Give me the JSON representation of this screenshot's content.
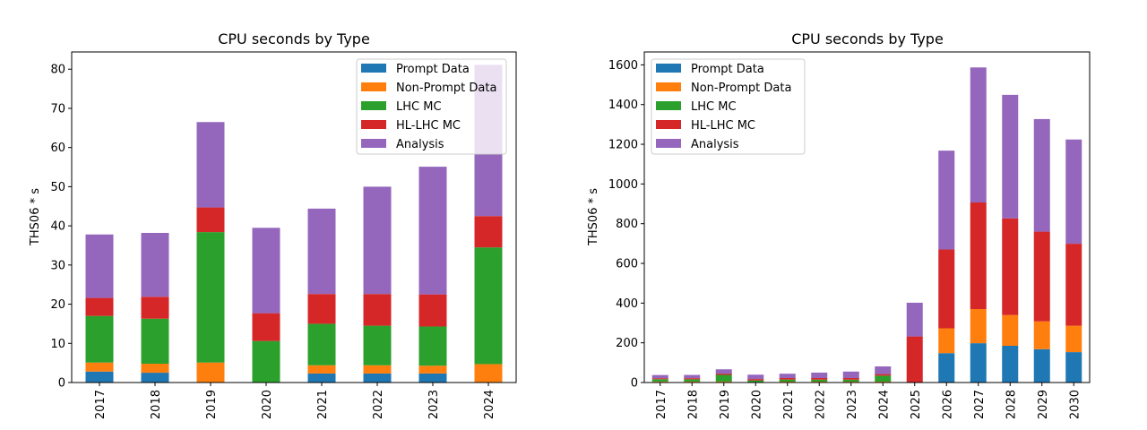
{
  "colors": {
    "Prompt Data": "#1f77b4",
    "Non-Prompt Data": "#ff7f0e",
    "LHC MC": "#2ca02c",
    "HL-LHC MC": "#d62728",
    "Analysis": "#9467bd"
  },
  "chart_data": [
    {
      "type": "bar",
      "stacked": true,
      "title": "CPU seconds by Type",
      "xlabel": "",
      "ylabel": "THS06 * s",
      "ylim": [
        0,
        85
      ],
      "yticks": [
        0,
        10,
        20,
        30,
        40,
        50,
        60,
        70,
        80
      ],
      "legend_position": "top-right",
      "categories": [
        "2017",
        "2018",
        "2019",
        "2020",
        "2021",
        "2022",
        "2023",
        "2024"
      ],
      "series": [
        {
          "name": "Prompt Data",
          "values": [
            2.8,
            2.5,
            0,
            0,
            2.3,
            2.3,
            2.3,
            0
          ]
        },
        {
          "name": "Non-Prompt Data",
          "values": [
            2.3,
            2.3,
            5.1,
            0,
            2.1,
            2.1,
            2.0,
            4.7
          ]
        },
        {
          "name": "LHC MC",
          "values": [
            11.9,
            11.5,
            33.3,
            10.6,
            10.6,
            10.1,
            10.0,
            29.8
          ]
        },
        {
          "name": "HL-LHC MC",
          "values": [
            4.6,
            5.6,
            6.3,
            7.1,
            7.6,
            8.1,
            8.2,
            8.0
          ]
        },
        {
          "name": "Analysis",
          "values": [
            16.2,
            16.3,
            21.8,
            21.8,
            21.8,
            27.4,
            32.6,
            38.6
          ]
        }
      ]
    },
    {
      "type": "bar",
      "stacked": true,
      "title": "CPU seconds by Type",
      "xlabel": "",
      "ylabel": "THS06 * s",
      "ylim": [
        0,
        1600
      ],
      "yticks": [
        0,
        200,
        400,
        600,
        800,
        1000,
        1200,
        1400,
        1600
      ],
      "legend_position": "top-left",
      "categories": [
        "2017",
        "2018",
        "2019",
        "2020",
        "2021",
        "2022",
        "2023",
        "2024",
        "2025",
        "2026",
        "2027",
        "2028",
        "2029",
        "2030"
      ],
      "series": [
        {
          "name": "Prompt Data",
          "values": [
            2.8,
            2.5,
            0,
            0,
            2.3,
            2.3,
            2.3,
            0,
            0,
            148,
            198,
            185,
            168,
            153
          ]
        },
        {
          "name": "Non-Prompt Data",
          "values": [
            2.3,
            2.3,
            5.1,
            0,
            2.1,
            2.1,
            2.0,
            4.7,
            0,
            125,
            172,
            155,
            140,
            133
          ]
        },
        {
          "name": "LHC MC",
          "values": [
            11.9,
            11.5,
            33.3,
            10.6,
            10.6,
            10.1,
            10.0,
            29.8,
            0,
            0,
            0,
            0,
            0,
            0
          ]
        },
        {
          "name": "HL-LHC MC",
          "values": [
            4.6,
            5.6,
            6.3,
            7.1,
            7.6,
            8.1,
            8.2,
            8.0,
            232,
            397,
            537,
            487,
            452,
            413
          ]
        },
        {
          "name": "Analysis",
          "values": [
            16.2,
            16.3,
            21.8,
            21.8,
            21.8,
            27.4,
            32.6,
            38.6,
            170,
            498,
            680,
            622,
            567,
            525
          ]
        }
      ]
    }
  ]
}
